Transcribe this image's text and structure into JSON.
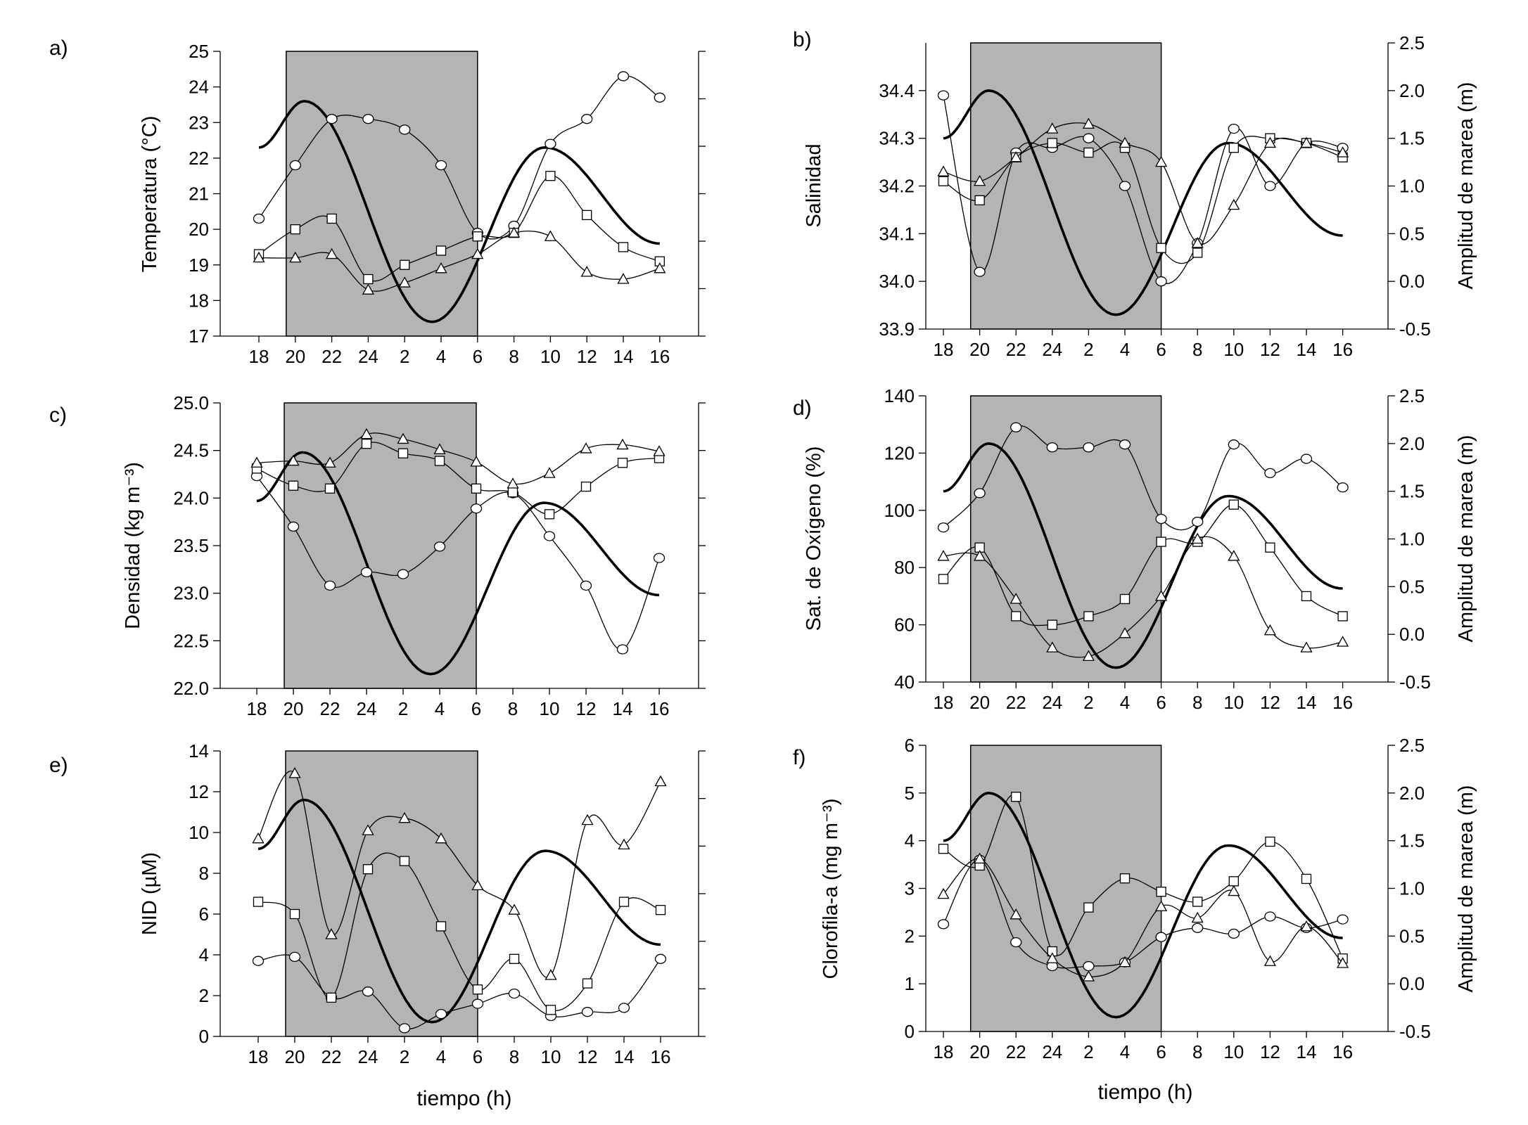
{
  "x_title": "tiempo (h)",
  "x_tick_labels": [
    "18",
    "20",
    "22",
    "24",
    "2",
    "4",
    "6",
    "8",
    "10",
    "12",
    "14",
    "16"
  ],
  "night_period": {
    "start_hour": 19.5,
    "end_hour": 6
  },
  "tide_axis_label": "Amplitud de marea (m)",
  "tide_ticks": [
    "-0.5",
    "0.0",
    "0.5",
    "1.0",
    "1.5",
    "2.0",
    "2.5"
  ],
  "chart_data": [
    {
      "id": "a",
      "letter": "a)",
      "type": "line",
      "ylabel": "Temperatura (°C)",
      "ylim": [
        17,
        25
      ],
      "yticks": [
        "17",
        "18",
        "19",
        "20",
        "21",
        "22",
        "23",
        "24",
        "25"
      ],
      "right_axis_labels": false,
      "x": [
        "18",
        "20",
        "22",
        "24",
        "2",
        "4",
        "6",
        "8",
        "10",
        "12",
        "14",
        "16"
      ],
      "series": [
        {
          "marker": "circle",
          "values": [
            20.3,
            21.8,
            23.1,
            23.1,
            22.8,
            21.8,
            19.9,
            20.1,
            22.4,
            23.1,
            24.3,
            23.7
          ]
        },
        {
          "marker": "square",
          "values": [
            19.3,
            20.0,
            20.3,
            18.6,
            19.0,
            19.4,
            19.8,
            19.9,
            21.5,
            20.4,
            19.5,
            19.1
          ]
        },
        {
          "marker": "triangle",
          "values": [
            19.2,
            19.2,
            19.3,
            18.3,
            18.5,
            18.9,
            19.3,
            19.9,
            19.8,
            18.8,
            18.6,
            18.9
          ]
        }
      ],
      "tide": {
        "x": [
          18,
          20.5,
          27.5,
          33.7,
          40
        ],
        "y": [
          22.3,
          23.6,
          17.4,
          22.3,
          19.6
        ]
      }
    },
    {
      "id": "b",
      "letter": "b)",
      "type": "line",
      "ylabel": "Salinidad",
      "ylim": [
        33.9,
        34.5
      ],
      "yticks": [
        "33.9",
        "34.0",
        "34.1",
        "34.2",
        "34.3",
        "34.4"
      ],
      "right_axis_labels": true,
      "x": [
        "18",
        "20",
        "22",
        "24",
        "2",
        "4",
        "6",
        "8",
        "10",
        "12",
        "14",
        "16"
      ],
      "series": [
        {
          "marker": "circle",
          "values": [
            34.39,
            34.02,
            34.27,
            34.28,
            34.3,
            34.2,
            34.0,
            34.08,
            34.32,
            34.2,
            34.29,
            34.28
          ]
        },
        {
          "marker": "square",
          "values": [
            34.21,
            34.17,
            34.26,
            34.29,
            34.27,
            34.28,
            34.07,
            34.06,
            34.28,
            34.3,
            34.29,
            34.26
          ]
        },
        {
          "marker": "triangle",
          "values": [
            34.23,
            34.21,
            34.26,
            34.32,
            34.33,
            34.29,
            34.25,
            34.08,
            34.16,
            34.29,
            34.29,
            34.27
          ]
        }
      ],
      "tide": {
        "x": [
          18,
          20.5,
          27.5,
          33.7,
          40
        ],
        "y": [
          1.5,
          2.0,
          -0.35,
          1.45,
          0.48
        ]
      }
    },
    {
      "id": "c",
      "letter": "c)",
      "type": "line",
      "ylabel": "Densidad (kg m⁻³)",
      "ylim": [
        22.0,
        25.0
      ],
      "yticks": [
        "22.0",
        "22.5",
        "23.0",
        "23.5",
        "24.0",
        "24.5",
        "25.0"
      ],
      "right_axis_labels": false,
      "x": [
        "18",
        "20",
        "22",
        "24",
        "2",
        "4",
        "6",
        "8",
        "10",
        "12",
        "14",
        "16"
      ],
      "series": [
        {
          "marker": "circle",
          "values": [
            24.23,
            23.7,
            23.08,
            23.22,
            23.2,
            23.49,
            23.89,
            24.05,
            23.6,
            23.08,
            22.41,
            23.37
          ]
        },
        {
          "marker": "square",
          "values": [
            24.31,
            24.13,
            24.1,
            24.57,
            24.47,
            24.39,
            24.1,
            24.06,
            23.83,
            24.12,
            24.37,
            24.42
          ]
        },
        {
          "marker": "triangle",
          "values": [
            24.37,
            24.39,
            24.37,
            24.67,
            24.62,
            24.51,
            24.38,
            24.15,
            24.26,
            24.52,
            24.56,
            24.49
          ]
        }
      ],
      "tide": {
        "x": [
          18,
          20.5,
          27.5,
          33.7,
          40
        ],
        "y": [
          23.97,
          24.48,
          22.15,
          23.95,
          22.98
        ]
      }
    },
    {
      "id": "d",
      "letter": "d)",
      "type": "line",
      "ylabel": "Sat. de Oxígeno (%)",
      "ylim": [
        40,
        140
      ],
      "yticks": [
        "40",
        "60",
        "80",
        "100",
        "120",
        "140"
      ],
      "right_axis_labels": true,
      "x": [
        "18",
        "20",
        "22",
        "24",
        "2",
        "4",
        "6",
        "8",
        "10",
        "12",
        "14",
        "16"
      ],
      "series": [
        {
          "marker": "circle",
          "values": [
            94,
            106,
            129,
            122,
            122,
            123,
            97,
            96,
            123,
            113,
            118,
            108
          ]
        },
        {
          "marker": "square",
          "values": [
            76,
            87,
            63,
            60,
            63,
            69,
            89,
            89,
            102,
            87,
            70,
            63
          ]
        },
        {
          "marker": "triangle",
          "values": [
            84,
            84,
            69,
            52,
            49,
            57,
            70,
            90,
            84,
            58,
            52,
            54
          ]
        }
      ],
      "tide": {
        "x": [
          18,
          20.5,
          27.5,
          33.7,
          40
        ],
        "y": [
          1.5,
          2.0,
          -0.35,
          1.45,
          0.48
        ]
      }
    },
    {
      "id": "e",
      "letter": "e)",
      "type": "line",
      "ylabel": "NID (µM)",
      "ylim": [
        0,
        14
      ],
      "yticks": [
        "0",
        "2",
        "4",
        "6",
        "8",
        "10",
        "12",
        "14"
      ],
      "right_axis_labels": false,
      "x": [
        "18",
        "20",
        "22",
        "24",
        "2",
        "4",
        "6",
        "8",
        "10",
        "12",
        "14",
        "16"
      ],
      "series": [
        {
          "marker": "circle",
          "values": [
            3.7,
            3.9,
            1.9,
            2.2,
            0.4,
            1.1,
            1.6,
            2.1,
            1.0,
            1.2,
            1.4,
            3.8
          ]
        },
        {
          "marker": "square",
          "values": [
            6.6,
            6.0,
            1.9,
            8.2,
            8.6,
            5.4,
            2.3,
            3.8,
            1.3,
            2.6,
            6.6,
            6.2
          ]
        },
        {
          "marker": "triangle",
          "values": [
            9.7,
            12.9,
            5.0,
            10.1,
            10.7,
            9.7,
            7.4,
            6.2,
            3.0,
            10.6,
            9.4,
            12.5
          ]
        }
      ],
      "tide": {
        "x": [
          18,
          20.5,
          27.5,
          33.7,
          40
        ],
        "y": [
          9.2,
          11.6,
          0.7,
          9.1,
          4.5
        ]
      }
    },
    {
      "id": "f",
      "letter": "f)",
      "type": "line",
      "ylabel": "Clorofila-a (mg m⁻³)",
      "ylim": [
        0,
        6
      ],
      "yticks": [
        "0",
        "1",
        "2",
        "3",
        "4",
        "5",
        "6"
      ],
      "right_axis_labels": true,
      "x": [
        "18",
        "20",
        "22",
        "24",
        "2",
        "4",
        "6",
        "8",
        "10",
        "12",
        "14",
        "16"
      ],
      "series": [
        {
          "marker": "circle",
          "values": [
            2.25,
            3.6,
            1.87,
            1.37,
            1.37,
            1.45,
            1.98,
            2.17,
            2.05,
            2.41,
            2.17,
            2.35
          ]
        },
        {
          "marker": "square",
          "values": [
            3.83,
            3.48,
            4.92,
            1.68,
            2.6,
            3.21,
            2.93,
            2.72,
            3.15,
            3.98,
            3.2,
            1.53
          ]
        },
        {
          "marker": "triangle",
          "values": [
            2.88,
            3.62,
            2.45,
            1.53,
            1.15,
            1.45,
            2.62,
            2.38,
            2.94,
            1.47,
            2.2,
            1.43
          ]
        }
      ],
      "tide": {
        "x": [
          18,
          20.5,
          27.5,
          33.7,
          40
        ],
        "y": [
          1.5,
          2.0,
          -0.35,
          1.45,
          0.48
        ]
      }
    }
  ]
}
